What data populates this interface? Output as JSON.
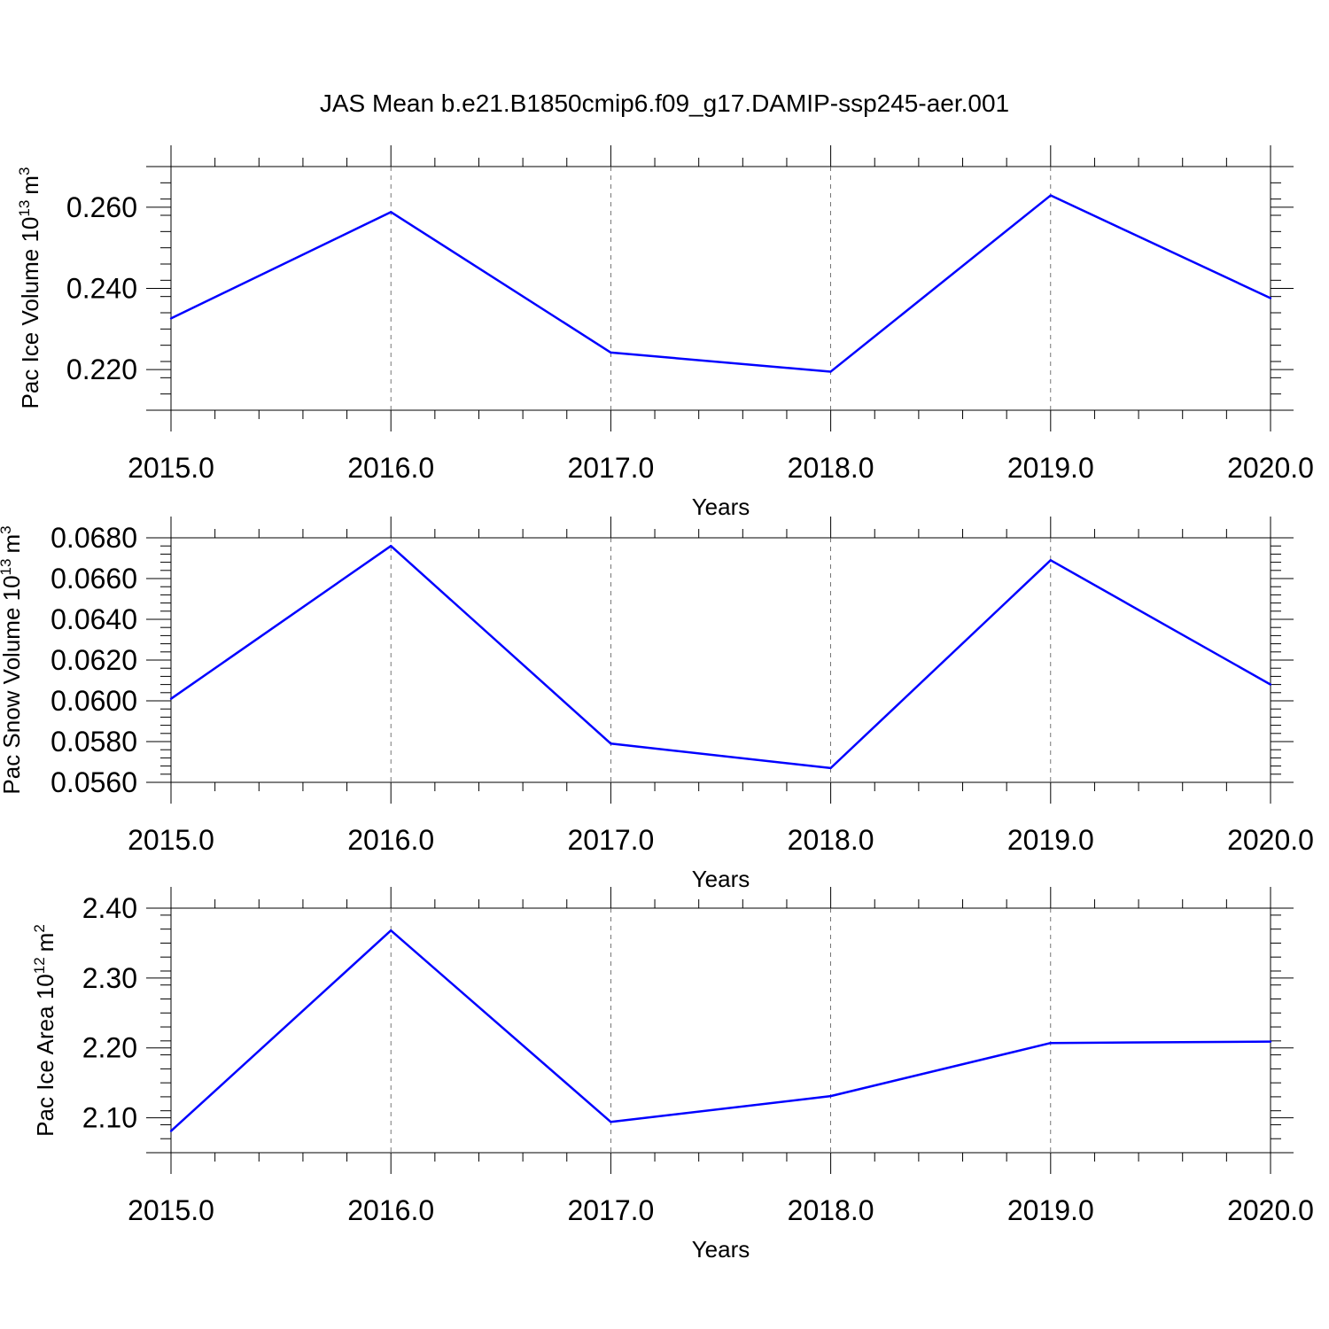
{
  "title": "JAS Mean b.e21.B1850cmip6.f09_g17.DAMIP-ssp245-aer.001",
  "chart_data": [
    {
      "type": "line",
      "ylabel_main": "Pac Ice Volume 10",
      "ylabel_exp": "13",
      "ylabel_unit": "m",
      "ylabel_unit_exp": "3",
      "xlabel": "Years",
      "x": [
        2015,
        2016,
        2017,
        2018,
        2019,
        2020
      ],
      "xticks": [
        "2015.0",
        "2016.0",
        "2017.0",
        "2018.0",
        "2019.0",
        "2020.0"
      ],
      "xlim": [
        2015,
        2020
      ],
      "ylim": [
        0.21,
        0.27
      ],
      "yticks": [
        0.22,
        0.24,
        0.26
      ],
      "yticklabels": [
        "0.220",
        "0.240",
        "0.260"
      ],
      "series": [
        {
          "values": [
            0.2326,
            0.2588,
            0.2242,
            0.2195,
            0.2629,
            0.2376
          ],
          "color": "#0000ff"
        }
      ],
      "grid": "vertical dashed at major x ticks"
    },
    {
      "type": "line",
      "ylabel_main": "Pac Snow Volume 10",
      "ylabel_exp": "13",
      "ylabel_unit": "m",
      "ylabel_unit_exp": "3",
      "xlabel": "Years",
      "x": [
        2015,
        2016,
        2017,
        2018,
        2019,
        2020
      ],
      "xticks": [
        "2015.0",
        "2016.0",
        "2017.0",
        "2018.0",
        "2019.0",
        "2020.0"
      ],
      "xlim": [
        2015,
        2020
      ],
      "ylim": [
        0.056,
        0.068
      ],
      "yticks": [
        0.056,
        0.058,
        0.06,
        0.062,
        0.064,
        0.066,
        0.068
      ],
      "yticklabels": [
        "0.0560",
        "0.0580",
        "0.0600",
        "0.0620",
        "0.0640",
        "0.0660",
        "0.0680"
      ],
      "series": [
        {
          "values": [
            0.0601,
            0.0676,
            0.0579,
            0.0567,
            0.0669,
            0.0608
          ],
          "color": "#0000ff"
        }
      ],
      "grid": "vertical dashed at major x ticks"
    },
    {
      "type": "line",
      "ylabel_main": "Pac Ice Area 10",
      "ylabel_exp": "12",
      "ylabel_unit": "m",
      "ylabel_unit_exp": "2",
      "xlabel": "Years",
      "x": [
        2015,
        2016,
        2017,
        2018,
        2019,
        2020
      ],
      "xticks": [
        "2015.0",
        "2016.0",
        "2017.0",
        "2018.0",
        "2019.0",
        "2020.0"
      ],
      "xlim": [
        2015,
        2020
      ],
      "ylim": [
        2.05,
        2.4
      ],
      "yticks": [
        2.1,
        2.2,
        2.3,
        2.4
      ],
      "yticklabels": [
        "2.10",
        "2.20",
        "2.30",
        "2.40"
      ],
      "series": [
        {
          "values": [
            2.081,
            2.368,
            2.094,
            2.131,
            2.207,
            2.209
          ],
          "color": "#0000ff"
        }
      ],
      "grid": "vertical dashed at major x ticks"
    }
  ]
}
